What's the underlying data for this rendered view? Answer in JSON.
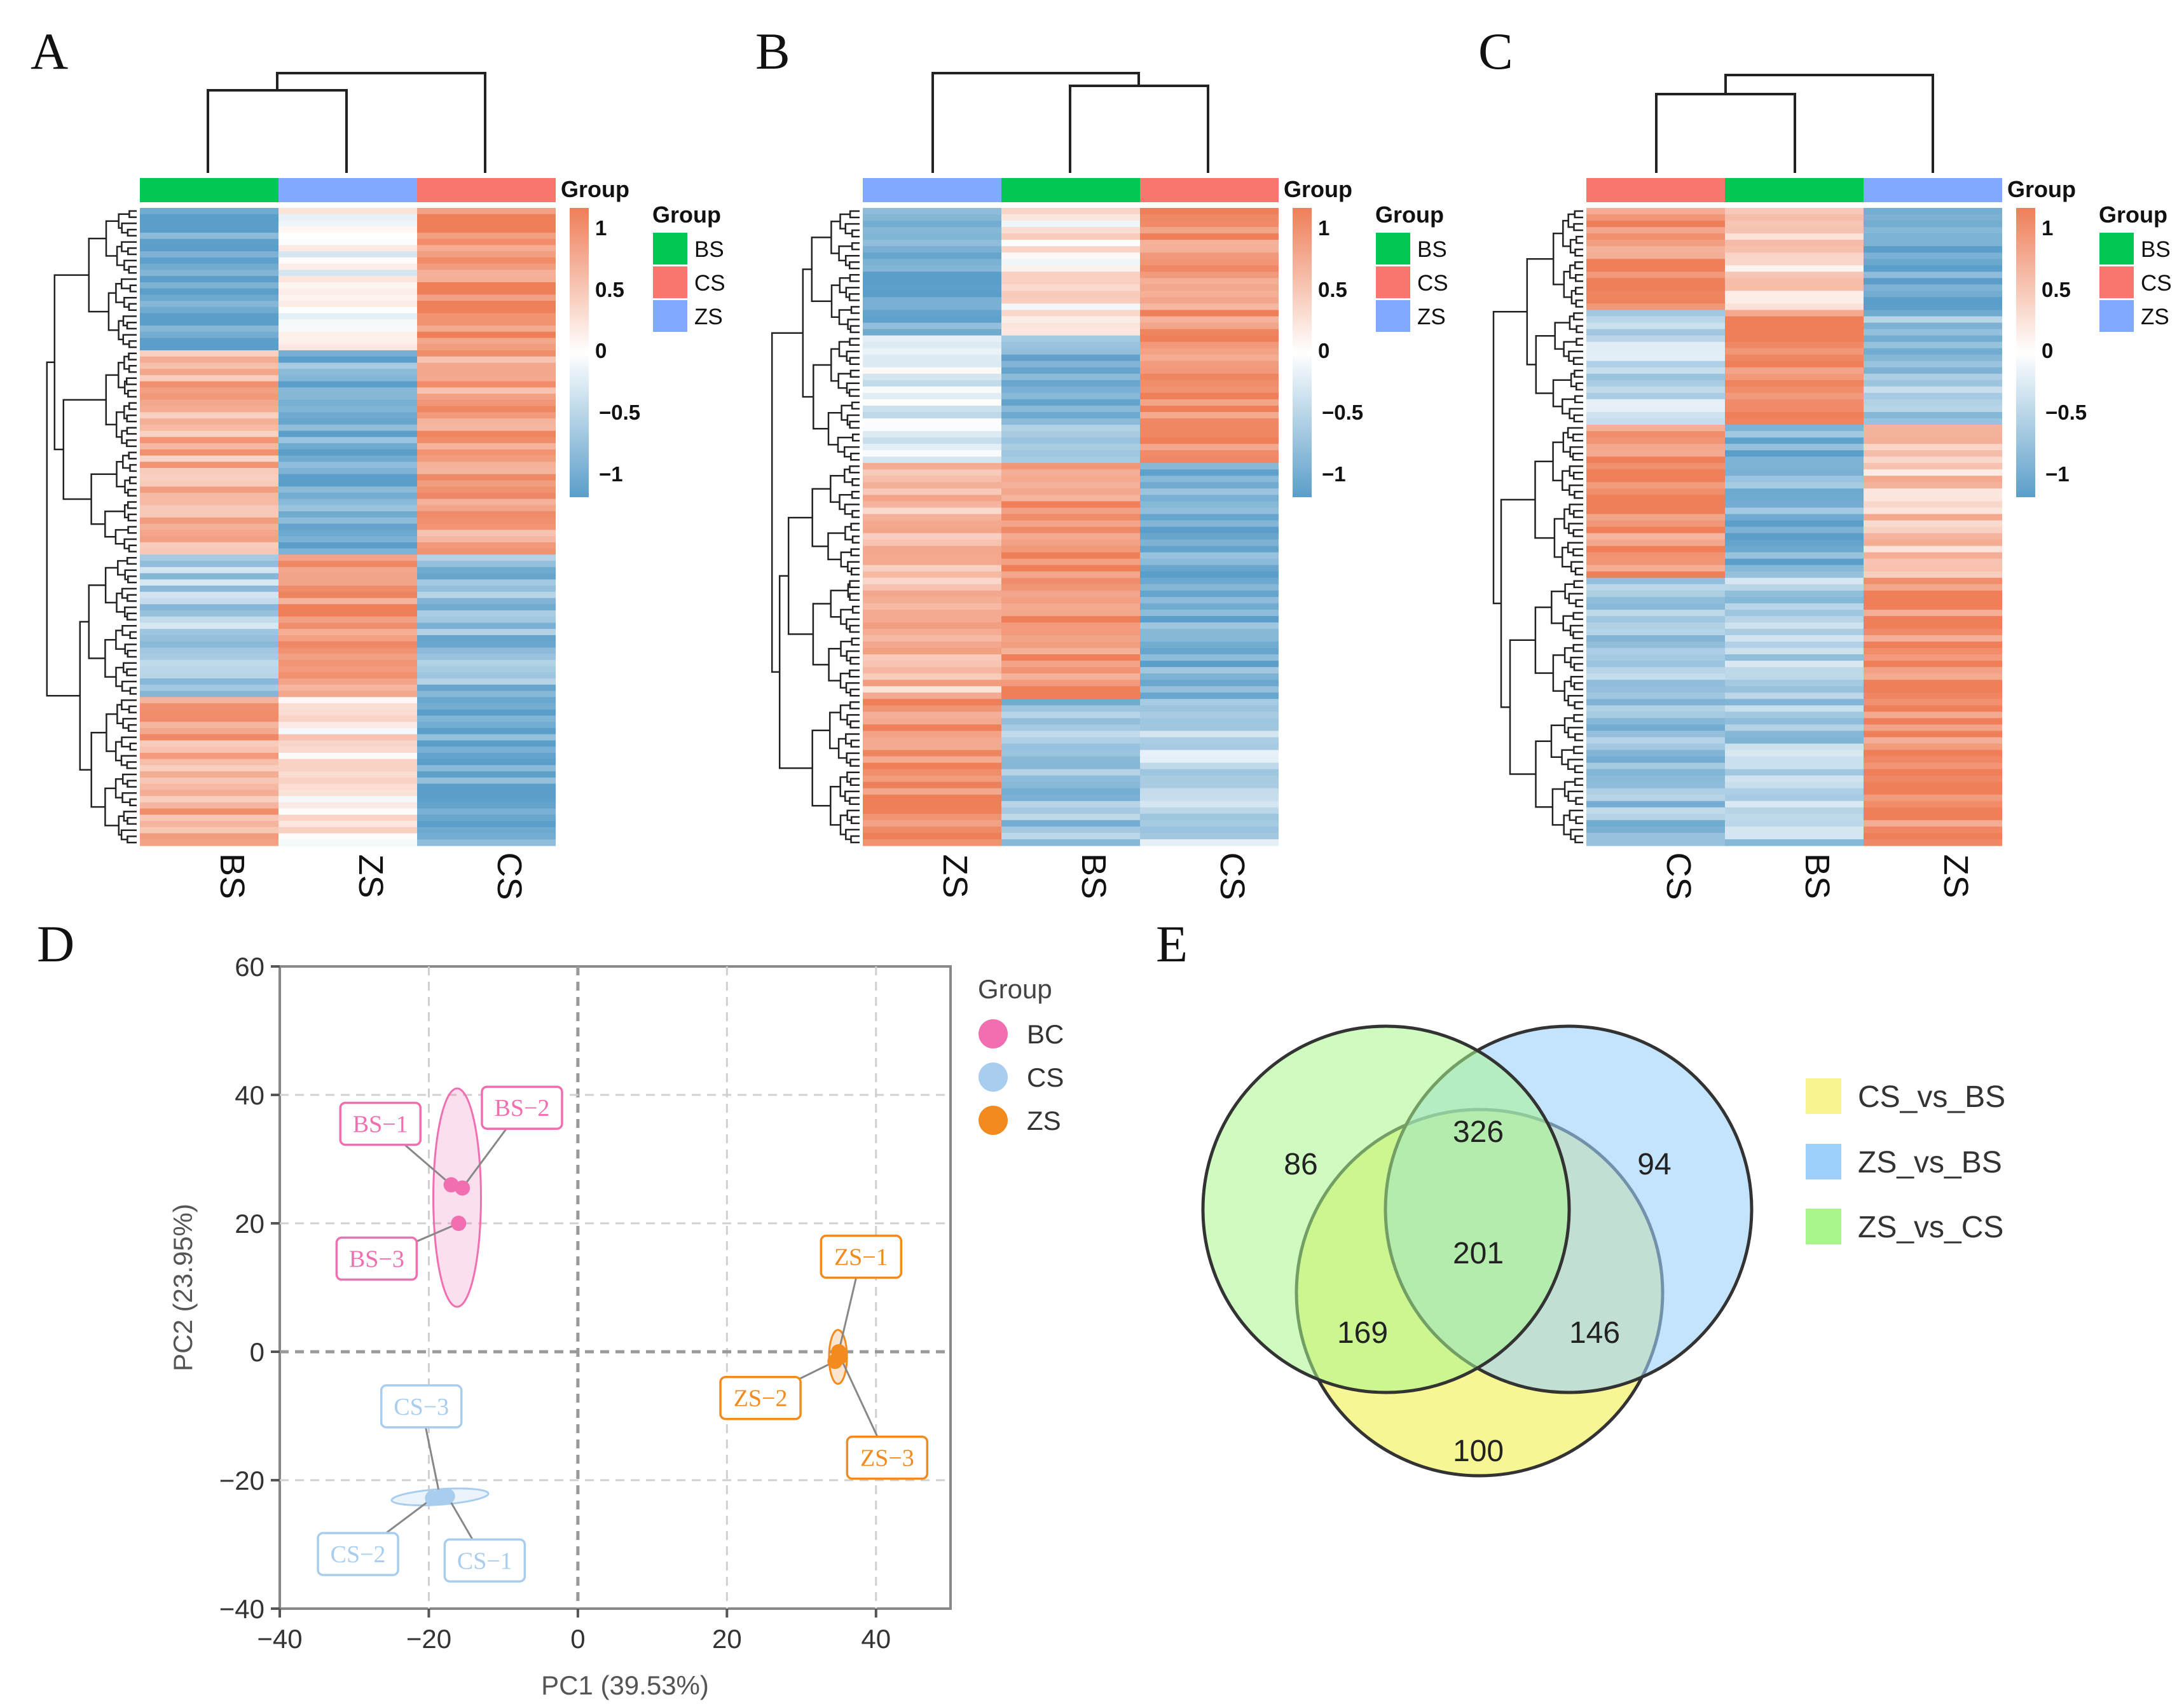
{
  "panels": [
    {
      "id": "A",
      "label": "A",
      "columns": [
        "BS",
        "ZS",
        "CS"
      ]
    },
    {
      "id": "B",
      "label": "B",
      "columns": [
        "ZS",
        "BS",
        "CS"
      ]
    },
    {
      "id": "C",
      "label": "C",
      "columns": [
        "CS",
        "BS",
        "ZS"
      ]
    }
  ],
  "heatmap_legend": {
    "title": "Group",
    "items": [
      {
        "name": "BS",
        "color": "#00c853"
      },
      {
        "name": "CS",
        "color": "#f8766d"
      },
      {
        "name": "ZS",
        "color": "#80aaff"
      }
    ],
    "colorbar_ticks": [
      "1",
      "0.5",
      "0",
      "−0.5",
      "−1"
    ],
    "colorbar_colors": {
      "high": "#ee7f58",
      "mid": "#ffffff",
      "low": "#5b9ec9"
    }
  },
  "heatmap_column_colors": {
    "BS": "#00c853",
    "CS": "#f8766d",
    "ZS": "#80aaff"
  },
  "pca": {
    "label": "D",
    "legend_title": "Group",
    "legend": [
      {
        "name": "BC",
        "color": "#f16fb0"
      },
      {
        "name": "CS",
        "color": "#a9cdee"
      },
      {
        "name": "ZS",
        "color": "#f28a1e"
      }
    ]
  },
  "venn": {
    "label": "E",
    "sets": [
      {
        "name": "CS_vs_BS",
        "color": "#f7f58f"
      },
      {
        "name": "ZS_vs_BS",
        "color": "#9dd1fb"
      },
      {
        "name": "ZS_vs_CS",
        "color": "#a8f58c"
      }
    ],
    "regions": {
      "zs_cs_only": "86",
      "zs_cs_zs_bs": "326",
      "zs_bs_only": "94",
      "all": "201",
      "zs_cs_cs_bs": "169",
      "zs_bs_cs_bs": "146",
      "cs_bs_only": "100"
    }
  },
  "chart_data": [
    {
      "type": "heatmap",
      "title": "A",
      "columns": [
        "BS",
        "ZS",
        "CS"
      ],
      "blocks": [
        {
          "rows": 23,
          "values": [
            -0.95,
            0.0,
            0.85
          ]
        },
        {
          "rows": 33,
          "values": [
            0.6,
            -0.8,
            0.7
          ]
        },
        {
          "rows": 23,
          "values": [
            -0.5,
            0.85,
            -0.7
          ]
        },
        {
          "rows": 24,
          "values": [
            0.65,
            0.2,
            -0.9
          ]
        }
      ],
      "color_range": [
        -1,
        1
      ]
    },
    {
      "type": "heatmap",
      "title": "B",
      "columns": [
        "ZS",
        "BS",
        "CS"
      ],
      "blocks": [
        {
          "rows": 20,
          "values": [
            -0.9,
            0.15,
            0.8
          ]
        },
        {
          "rows": 20,
          "values": [
            -0.2,
            -0.7,
            0.9
          ]
        },
        {
          "rows": 37,
          "values": [
            0.5,
            0.85,
            -0.8
          ]
        },
        {
          "rows": 23,
          "values": [
            0.9,
            -0.6,
            -0.4
          ]
        }
      ],
      "color_range": [
        -1,
        1
      ]
    },
    {
      "type": "heatmap",
      "title": "C",
      "columns": [
        "CS",
        "BS",
        "ZS"
      ],
      "blocks": [
        {
          "rows": 16,
          "values": [
            0.85,
            0.3,
            -0.9
          ]
        },
        {
          "rows": 18,
          "values": [
            -0.4,
            0.9,
            -0.6
          ]
        },
        {
          "rows": 24,
          "values": [
            0.85,
            -0.8,
            0.4
          ]
        },
        {
          "rows": 42,
          "values": [
            -0.6,
            -0.5,
            0.9
          ]
        }
      ],
      "color_range": [
        -1,
        1
      ]
    },
    {
      "type": "scatter",
      "title": "",
      "xlabel": "PC1 (39.53%)",
      "ylabel": "PC2 (23.95%)",
      "xlim": [
        -40,
        50
      ],
      "ylim": [
        -40,
        60
      ],
      "xticks": [
        -40,
        -20,
        0,
        20,
        40
      ],
      "yticks": [
        -40,
        -20,
        0,
        20,
        40,
        60
      ],
      "grid": true,
      "series": [
        {
          "name": "BC",
          "color": "#f16fb0",
          "labels": [
            "BS−1",
            "BS−2",
            "BS−3"
          ],
          "x": [
            -17,
            -15.5,
            -16
          ],
          "y": [
            26,
            25.5,
            20
          ]
        },
        {
          "name": "CS",
          "color": "#a9cdee",
          "labels": [
            "CS−1",
            "CS−2",
            "CS−3"
          ],
          "x": [
            -17.5,
            -19.5,
            -18.5
          ],
          "y": [
            -22.5,
            -22.8,
            -22.6
          ]
        },
        {
          "name": "ZS",
          "color": "#f28a1e",
          "labels": [
            "ZS−1",
            "ZS−2",
            "ZS−3"
          ],
          "x": [
            35,
            34.5,
            35.2
          ],
          "y": [
            0,
            -1.5,
            -0.8
          ]
        }
      ]
    },
    {
      "type": "venn",
      "sets": [
        "CS_vs_BS",
        "ZS_vs_BS",
        "ZS_vs_CS"
      ],
      "values": {
        "ZS_vs_CS only": 86,
        "ZS_vs_CS&ZS_vs_BS": 326,
        "ZS_vs_BS only": 94,
        "all": 201,
        "ZS_vs_CS&CS_vs_BS": 169,
        "ZS_vs_BS&CS_vs_BS": 146,
        "CS_vs_BS only": 100
      }
    }
  ]
}
